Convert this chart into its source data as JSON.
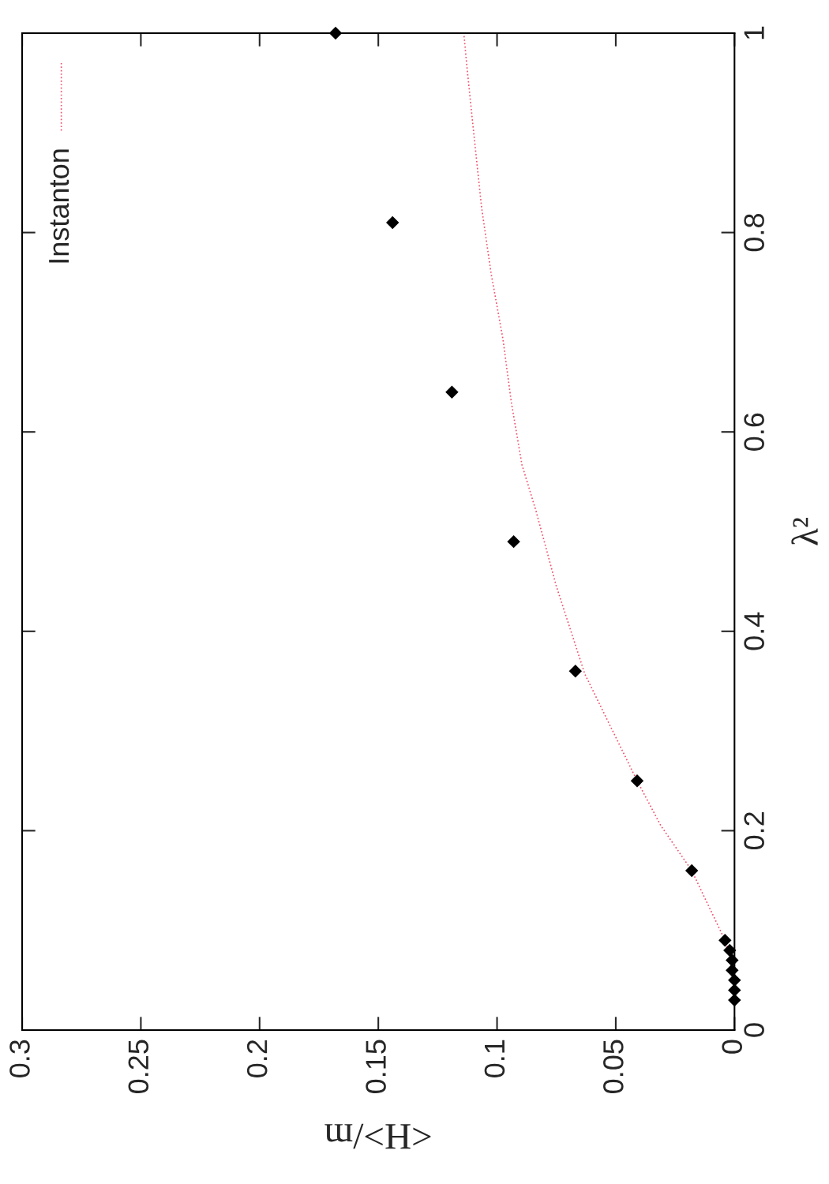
{
  "chart_data": {
    "type": "scatter",
    "xlabel": "<H>/m",
    "ylabel": "λ²",
    "xlim": [
      0.3,
      0
    ],
    "ylim": [
      0,
      1
    ],
    "xticks": [
      0.3,
      0.25,
      0.2,
      0.15,
      0.1,
      0.05,
      0
    ],
    "yticks": [
      0,
      0.2,
      0.4,
      0.6,
      0.8,
      1
    ],
    "grid": false,
    "legend": "top left",
    "series": [
      {
        "color": "#000000",
        "marker": "diamond",
        "x": [
          0.168,
          0.144,
          0.119,
          0.093,
          0.067,
          0.041,
          0.018,
          0.004,
          0.002,
          0.001,
          0.001,
          0,
          0,
          0
        ],
        "values": [
          1,
          0.81,
          0.64,
          0.49,
          0.36,
          0.25,
          0.16,
          0.09,
          0.08,
          0.07,
          0.06,
          0.05,
          0.04,
          0.03
        ]
      },
      {
        "type": "line",
        "name": "Instanton",
        "color": "#f0506a",
        "line_style": "dotted",
        "marker": "none",
        "x": [
          0.001,
          0.004,
          0.018,
          0.031,
          0.041,
          0.063,
          0.075,
          0.0835,
          0.0895,
          0.094,
          0.0975,
          0.1025,
          0.1065,
          0.11,
          0.1125,
          0.114
        ],
        "values": [
          0.07,
          0.09,
          0.16,
          0.205,
          0.25,
          0.357,
          0.445,
          0.52,
          0.567,
          0.63,
          0.693,
          0.759,
          0.825,
          0.904,
          0.962,
          1.0
        ]
      }
    ]
  }
}
